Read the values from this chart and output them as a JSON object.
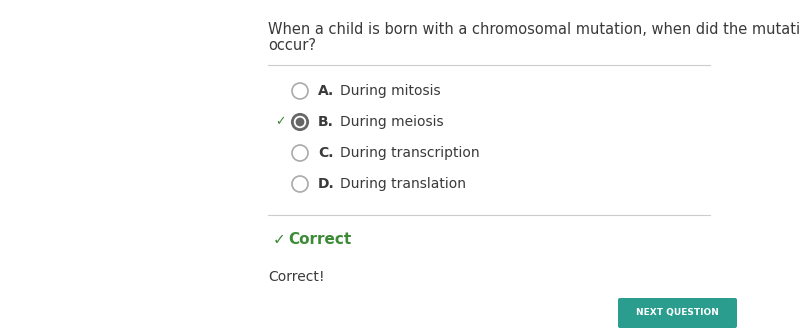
{
  "question_line1": "When a child is born with a chromosomal mutation, when did the mutation",
  "question_line2": "occur?",
  "options": [
    {
      "letter": "A.",
      "text": "During mitosis",
      "selected": false,
      "correct": false
    },
    {
      "letter": "B.",
      "text": "During meiosis",
      "selected": true,
      "correct": true
    },
    {
      "letter": "C.",
      "text": "During transcription",
      "selected": false,
      "correct": false
    },
    {
      "letter": "D.",
      "text": "During translation",
      "selected": false,
      "correct": false
    }
  ],
  "feedback_label": "Correct",
  "feedback_text": "Correct!",
  "button_text": "NEXT QUESTION",
  "bg_color": "#ffffff",
  "text_color": "#3a3a3a",
  "option_text_color": "#3a3a3a",
  "correct_color": "#3d8b37",
  "separator_color": "#cccccc",
  "circle_edge_color": "#aaaaaa",
  "selected_circle_edge": "#666666",
  "selected_dot_color": "#666666",
  "button_color": "#2a9d8f",
  "button_text_color": "#ffffff"
}
